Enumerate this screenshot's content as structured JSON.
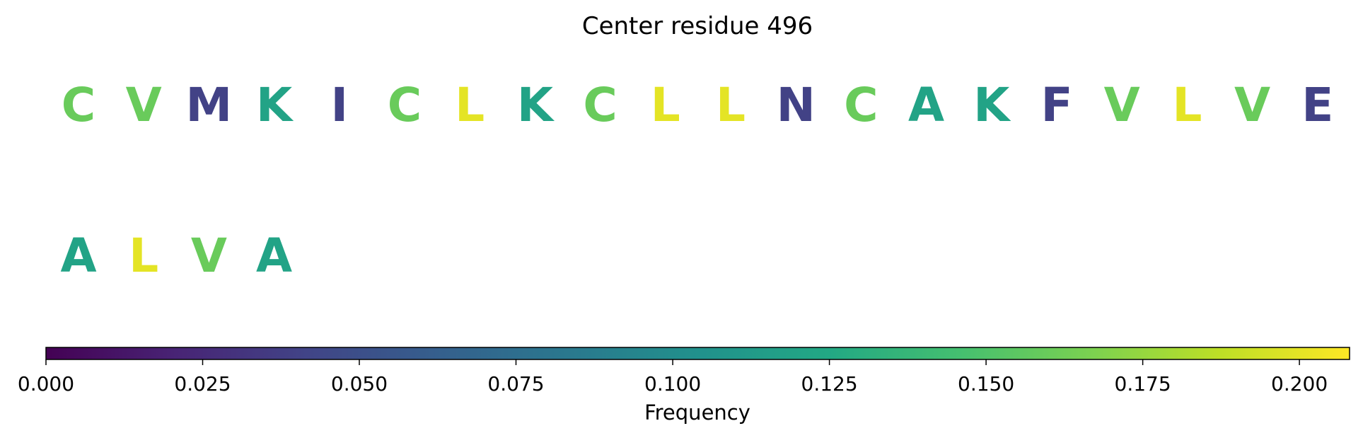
{
  "chart_data": {
    "type": "table",
    "title": "Center residue 496",
    "residues": [
      {
        "letter": "C",
        "frequency": 0.16
      },
      {
        "letter": "V",
        "frequency": 0.16
      },
      {
        "letter": "M",
        "frequency": 0.04
      },
      {
        "letter": "K",
        "frequency": 0.12
      },
      {
        "letter": "I",
        "frequency": 0.04
      },
      {
        "letter": "C",
        "frequency": 0.16
      },
      {
        "letter": "L",
        "frequency": 0.2
      },
      {
        "letter": "K",
        "frequency": 0.12
      },
      {
        "letter": "C",
        "frequency": 0.16
      },
      {
        "letter": "L",
        "frequency": 0.2
      },
      {
        "letter": "L",
        "frequency": 0.2
      },
      {
        "letter": "N",
        "frequency": 0.04
      },
      {
        "letter": "C",
        "frequency": 0.16
      },
      {
        "letter": "A",
        "frequency": 0.12
      },
      {
        "letter": "K",
        "frequency": 0.12
      },
      {
        "letter": "F",
        "frequency": 0.04
      },
      {
        "letter": "V",
        "frequency": 0.16
      },
      {
        "letter": "L",
        "frequency": 0.2
      },
      {
        "letter": "V",
        "frequency": 0.16
      },
      {
        "letter": "E",
        "frequency": 0.04
      },
      {
        "letter": "A",
        "frequency": 0.12
      },
      {
        "letter": "L",
        "frequency": 0.2
      },
      {
        "letter": "V",
        "frequency": 0.16
      },
      {
        "letter": "A",
        "frequency": 0.12
      }
    ],
    "colorbar": {
      "label": "Frequency",
      "colormap": "viridis",
      "range": [
        0,
        0.208
      ],
      "ticks": [
        "0.000",
        "0.025",
        "0.050",
        "0.075",
        "0.100",
        "0.125",
        "0.150",
        "0.175",
        "0.200"
      ]
    }
  }
}
